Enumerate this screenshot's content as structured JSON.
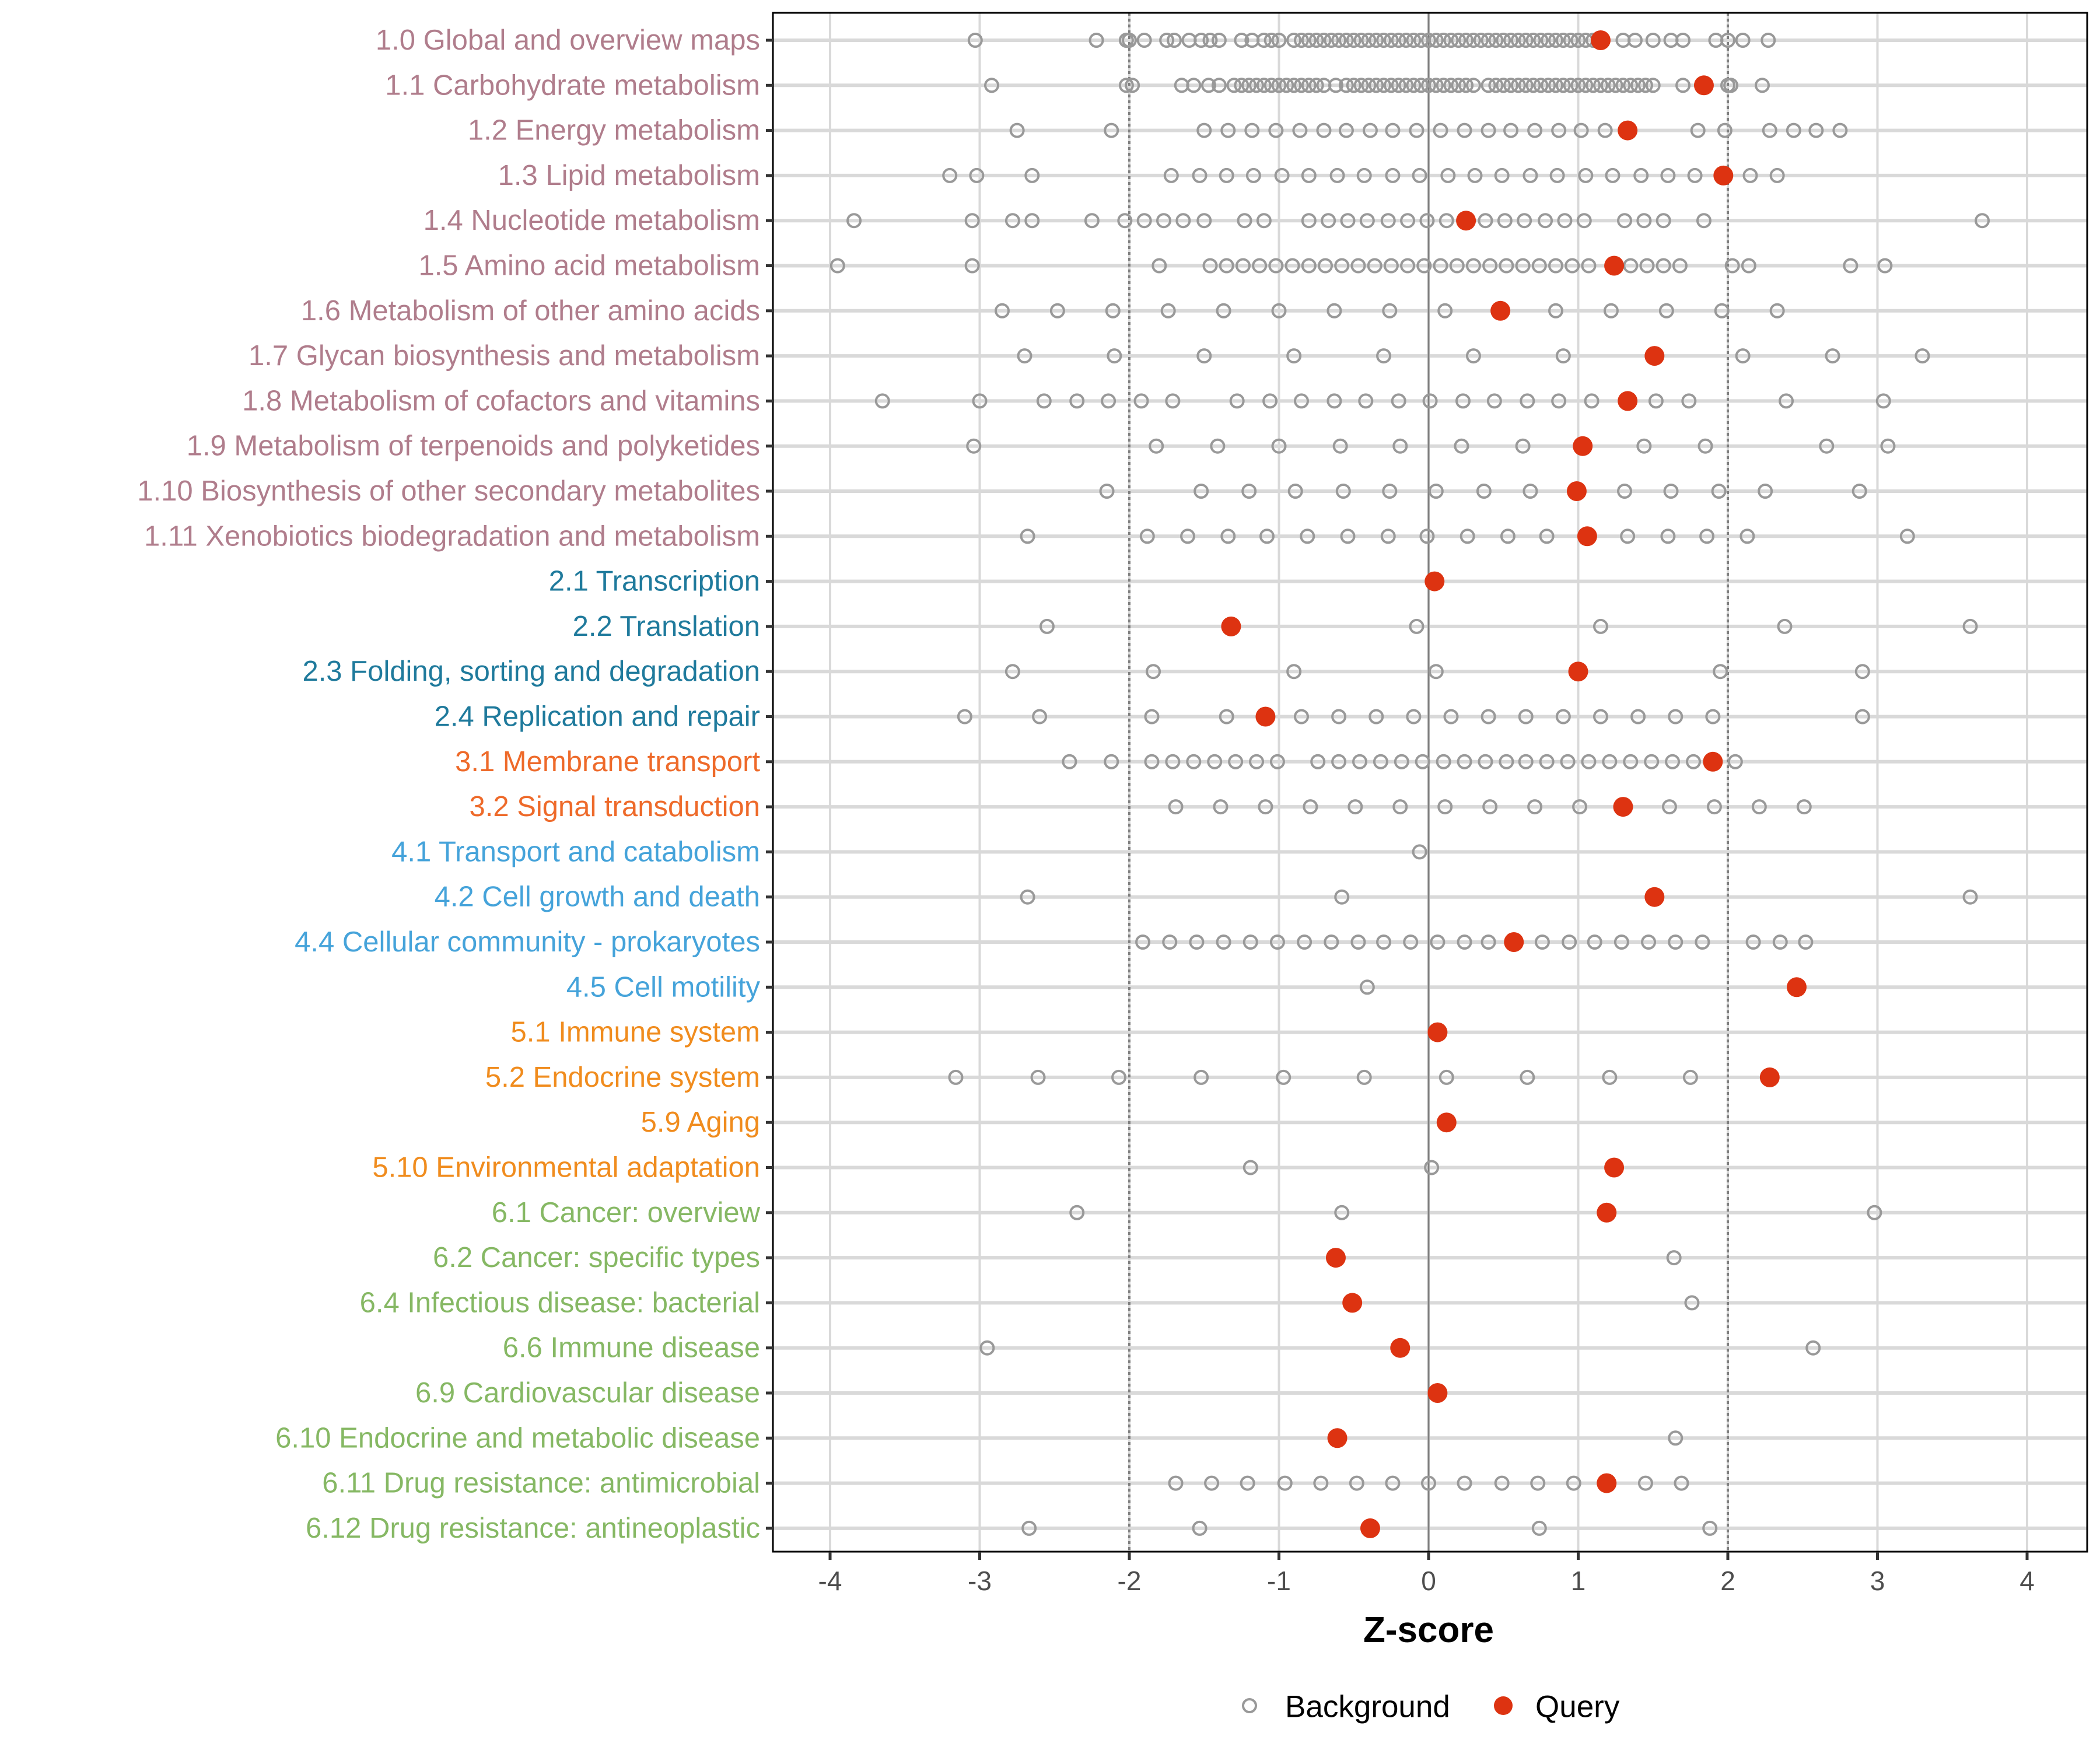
{
  "chart_data": {
    "type": "scatter",
    "title": "",
    "xlabel": "Z-score",
    "ylabel": "",
    "xlim": [
      -4.4,
      4.4
    ],
    "xticks": [
      -4,
      -3,
      -2,
      -1,
      0,
      1,
      2,
      3,
      4
    ],
    "xtick_labels": [
      "-4",
      "-3",
      "-2",
      "-1",
      "0",
      "1",
      "2",
      "3",
      "4"
    ],
    "reference_lines": {
      "solid": [
        0
      ],
      "dotted": [
        -2,
        2
      ]
    },
    "grid": true,
    "legend": {
      "position": "bottom",
      "entries": [
        {
          "label": "Background",
          "marker": "open-circle",
          "color": "#999999"
        },
        {
          "label": "Query",
          "marker": "filled-circle",
          "color": "#DD3311"
        }
      ]
    },
    "group_colors": {
      "1": "#B07D8C",
      "2": "#1F7A9C",
      "3": "#EE6A2A",
      "4": "#45A3DA",
      "5": "#F08C1E",
      "6": "#86B864"
    },
    "categories": [
      {
        "label": "1.0 Global and overview maps",
        "group": "1",
        "query": 1.15,
        "background": [
          -3.03,
          -2.22,
          -2.02,
          -2.0,
          -1.9,
          -1.75,
          -1.7,
          -1.6,
          -1.52,
          -1.46,
          -1.4,
          -1.25,
          -1.18,
          -1.1,
          -1.05,
          -1.0,
          -0.9,
          -0.85,
          -0.8,
          -0.75,
          -0.7,
          -0.65,
          -0.6,
          -0.55,
          -0.5,
          -0.45,
          -0.4,
          -0.35,
          -0.3,
          -0.25,
          -0.2,
          -0.15,
          -0.1,
          -0.05,
          0.0,
          0.05,
          0.1,
          0.15,
          0.2,
          0.25,
          0.3,
          0.35,
          0.4,
          0.45,
          0.5,
          0.55,
          0.6,
          0.65,
          0.7,
          0.75,
          0.8,
          0.85,
          0.9,
          0.95,
          1.0,
          1.05,
          1.1,
          1.3,
          1.38,
          1.5,
          1.62,
          1.7,
          1.92,
          2.0,
          2.1,
          2.27
        ]
      },
      {
        "label": "1.1 Carbohydrate metabolism",
        "group": "1",
        "query": 1.84,
        "background": [
          -2.92,
          -2.02,
          -1.98,
          -1.65,
          -1.57,
          -1.47,
          -1.4,
          -1.3,
          -1.25,
          -1.2,
          -1.15,
          -1.1,
          -1.05,
          -1.0,
          -0.95,
          -0.9,
          -0.85,
          -0.8,
          -0.75,
          -0.7,
          -0.62,
          -0.55,
          -0.5,
          -0.45,
          -0.4,
          -0.35,
          -0.3,
          -0.25,
          -0.2,
          -0.15,
          -0.1,
          -0.05,
          0.0,
          0.05,
          0.1,
          0.15,
          0.2,
          0.25,
          0.3,
          0.4,
          0.45,
          0.5,
          0.55,
          0.6,
          0.65,
          0.7,
          0.75,
          0.8,
          0.85,
          0.9,
          0.95,
          1.0,
          1.05,
          1.1,
          1.15,
          1.2,
          1.25,
          1.3,
          1.35,
          1.4,
          1.45,
          1.5,
          1.7,
          2.0,
          2.02,
          2.23
        ]
      },
      {
        "label": "1.2 Energy metabolism",
        "group": "1",
        "query": 1.33,
        "background": [
          -2.75,
          -2.12,
          -1.5,
          -1.34,
          -1.18,
          -1.02,
          -0.86,
          -0.7,
          -0.55,
          -0.39,
          -0.24,
          -0.08,
          0.08,
          0.24,
          0.4,
          0.55,
          0.71,
          0.87,
          1.02,
          1.18,
          1.8,
          1.98,
          2.28,
          2.44,
          2.59,
          2.75
        ]
      },
      {
        "label": "1.3 Lipid metabolism",
        "group": "1",
        "query": 1.97,
        "background": [
          -3.2,
          -3.02,
          -2.65,
          -1.72,
          -1.53,
          -1.35,
          -1.17,
          -0.98,
          -0.8,
          -0.61,
          -0.43,
          -0.24,
          -0.06,
          0.13,
          0.31,
          0.49,
          0.68,
          0.86,
          1.05,
          1.23,
          1.42,
          1.6,
          1.78,
          2.15,
          2.33
        ]
      },
      {
        "label": "1.4 Nucleotide metabolism",
        "group": "1",
        "query": 0.25,
        "background": [
          -3.84,
          -3.05,
          -2.78,
          -2.65,
          -2.25,
          -2.03,
          -1.9,
          -1.77,
          -1.64,
          -1.5,
          -1.23,
          -1.1,
          -0.8,
          -0.67,
          -0.54,
          -0.41,
          -0.27,
          -0.14,
          -0.01,
          0.12,
          0.38,
          0.51,
          0.64,
          0.78,
          0.91,
          1.04,
          1.31,
          1.44,
          1.57,
          1.84,
          3.7
        ]
      },
      {
        "label": "1.5 Amino acid metabolism",
        "group": "1",
        "query": 1.24,
        "background": [
          -3.95,
          -3.05,
          -1.8,
          -1.46,
          -1.35,
          -1.24,
          -1.13,
          -1.02,
          -0.91,
          -0.8,
          -0.69,
          -0.58,
          -0.47,
          -0.36,
          -0.25,
          -0.14,
          -0.03,
          0.08,
          0.19,
          0.3,
          0.41,
          0.52,
          0.63,
          0.74,
          0.85,
          0.96,
          1.07,
          1.35,
          1.46,
          1.57,
          1.68,
          2.03,
          2.14,
          2.82,
          3.05
        ]
      },
      {
        "label": "1.6 Metabolism of other amino acids",
        "group": "1",
        "query": 0.48,
        "background": [
          -2.85,
          -2.48,
          -2.11,
          -1.74,
          -1.37,
          -1.0,
          -0.63,
          -0.26,
          0.11,
          0.85,
          1.22,
          1.59,
          1.96,
          2.33
        ]
      },
      {
        "label": "1.7 Glycan biosynthesis and metabolism",
        "group": "1",
        "query": 1.51,
        "background": [
          -2.7,
          -2.1,
          -1.5,
          -0.9,
          -0.3,
          0.3,
          0.9,
          2.1,
          2.7,
          3.3
        ]
      },
      {
        "label": "1.8 Metabolism of cofactors and vitamins",
        "group": "1",
        "query": 1.33,
        "background": [
          -3.65,
          -3.0,
          -2.57,
          -2.35,
          -2.14,
          -1.92,
          -1.71,
          -1.28,
          -1.06,
          -0.85,
          -0.63,
          -0.42,
          -0.2,
          0.01,
          0.23,
          0.44,
          0.66,
          0.87,
          1.09,
          1.52,
          1.74,
          2.39,
          3.04
        ]
      },
      {
        "label": "1.9 Metabolism of terpenoids and polyketides",
        "group": "1",
        "query": 1.03,
        "background": [
          -3.04,
          -1.82,
          -1.41,
          -1.0,
          -0.59,
          -0.19,
          0.22,
          0.63,
          1.44,
          1.85,
          2.66,
          3.07
        ]
      },
      {
        "label": "1.10 Biosynthesis of other secondary metabolites",
        "group": "1",
        "query": 0.99,
        "background": [
          -2.15,
          -1.52,
          -1.2,
          -0.89,
          -0.57,
          -0.26,
          0.05,
          0.37,
          0.68,
          1.31,
          1.62,
          1.94,
          2.25,
          2.88
        ]
      },
      {
        "label": "1.11 Xenobiotics biodegradation and metabolism",
        "group": "1",
        "query": 1.06,
        "background": [
          -2.68,
          -1.88,
          -1.61,
          -1.34,
          -1.08,
          -0.81,
          -0.54,
          -0.27,
          -0.01,
          0.26,
          0.53,
          0.79,
          1.33,
          1.6,
          1.86,
          2.13,
          3.2
        ]
      },
      {
        "label": "2.1 Transcription",
        "group": "2",
        "query": 0.04,
        "background": []
      },
      {
        "label": "2.2 Translation",
        "group": "2",
        "query": -1.32,
        "background": [
          -2.55,
          -0.08,
          1.15,
          2.38,
          3.62
        ]
      },
      {
        "label": "2.3 Folding, sorting and degradation",
        "group": "2",
        "query": 1.0,
        "background": [
          -2.78,
          -1.84,
          -0.9,
          0.05,
          1.95,
          2.9
        ]
      },
      {
        "label": "2.4 Replication and repair",
        "group": "2",
        "query": -1.09,
        "background": [
          -3.1,
          -2.6,
          -1.85,
          -1.35,
          -0.85,
          -0.6,
          -0.35,
          -0.1,
          0.15,
          0.4,
          0.65,
          0.9,
          1.15,
          1.4,
          1.65,
          1.9,
          2.9
        ]
      },
      {
        "label": "3.1 Membrane transport",
        "group": "3",
        "query": 1.9,
        "background": [
          -2.4,
          -2.12,
          -1.85,
          -1.71,
          -1.57,
          -1.43,
          -1.29,
          -1.15,
          -1.01,
          -0.74,
          -0.6,
          -0.46,
          -0.32,
          -0.18,
          -0.04,
          0.1,
          0.24,
          0.38,
          0.52,
          0.65,
          0.79,
          0.93,
          1.07,
          1.21,
          1.35,
          1.49,
          1.63,
          1.77,
          2.05
        ]
      },
      {
        "label": "3.2 Signal transduction",
        "group": "3",
        "query": 1.3,
        "background": [
          -1.69,
          -1.39,
          -1.09,
          -0.79,
          -0.49,
          -0.19,
          0.11,
          0.41,
          0.71,
          1.01,
          1.61,
          1.91,
          2.21,
          2.51
        ]
      },
      {
        "label": "4.1 Transport and catabolism",
        "group": "4",
        "query": null,
        "background": [
          -0.06
        ]
      },
      {
        "label": "4.2 Cell growth and death",
        "group": "4",
        "query": 1.51,
        "background": [
          -2.68,
          -0.58,
          3.62
        ]
      },
      {
        "label": "4.4 Cellular community - prokaryotes",
        "group": "4",
        "query": 0.57,
        "background": [
          -1.91,
          -1.73,
          -1.55,
          -1.37,
          -1.19,
          -1.01,
          -0.83,
          -0.65,
          -0.47,
          -0.3,
          -0.12,
          0.06,
          0.24,
          0.4,
          0.76,
          0.94,
          1.11,
          1.29,
          1.47,
          1.65,
          1.83,
          2.17,
          2.35,
          2.52
        ]
      },
      {
        "label": "4.5 Cell motility",
        "group": "4",
        "query": 2.46,
        "background": [
          -0.41
        ]
      },
      {
        "label": "5.1 Immune system",
        "group": "5",
        "query": 0.06,
        "background": []
      },
      {
        "label": "5.2 Endocrine system",
        "group": "5",
        "query": 2.28,
        "background": [
          -3.16,
          -2.61,
          -2.07,
          -1.52,
          -0.97,
          -0.43,
          0.12,
          0.66,
          1.21,
          1.75
        ]
      },
      {
        "label": "5.9 Aging",
        "group": "5",
        "query": 0.12,
        "background": []
      },
      {
        "label": "5.10 Environmental adaptation",
        "group": "5",
        "query": 1.24,
        "background": [
          -1.19,
          0.02
        ]
      },
      {
        "label": "6.1 Cancer: overview",
        "group": "6",
        "query": 1.19,
        "background": [
          -2.35,
          -0.58,
          2.98
        ]
      },
      {
        "label": "6.2 Cancer: specific types",
        "group": "6",
        "query": -0.62,
        "background": [
          1.64
        ]
      },
      {
        "label": "6.4 Infectious disease: bacterial",
        "group": "6",
        "query": -0.51,
        "background": [
          1.76
        ]
      },
      {
        "label": "6.6 Immune disease",
        "group": "6",
        "query": -0.19,
        "background": [
          -2.95,
          2.57
        ]
      },
      {
        "label": "6.9 Cardiovascular disease",
        "group": "6",
        "query": 0.06,
        "background": []
      },
      {
        "label": "6.10 Endocrine and metabolic disease",
        "group": "6",
        "query": -0.61,
        "background": [
          1.65
        ]
      },
      {
        "label": "6.11 Drug resistance: antimicrobial",
        "group": "6",
        "query": 1.19,
        "background": [
          -1.69,
          -1.45,
          -1.21,
          -0.96,
          -0.72,
          -0.48,
          -0.24,
          0.0,
          0.24,
          0.49,
          0.73,
          0.97,
          1.45,
          1.69
        ]
      },
      {
        "label": "6.12 Drug resistance: antineoplastic",
        "group": "6",
        "query": -0.39,
        "background": [
          -2.67,
          -1.53,
          0.74,
          1.88
        ]
      }
    ]
  }
}
